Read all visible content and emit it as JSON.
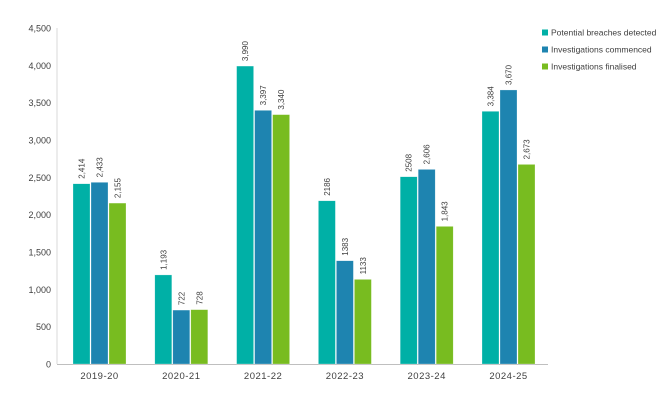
{
  "chart_data": {
    "type": "bar",
    "title": "",
    "xlabel": "",
    "ylabel": "",
    "ylim": [
      0,
      4500
    ],
    "yticks": [
      0,
      500,
      1000,
      1500,
      2000,
      2500,
      3000,
      3500,
      4000,
      4500
    ],
    "ytick_labels": [
      "0",
      "500",
      "1,000",
      "1,500",
      "2,000",
      "2,500",
      "3,000",
      "3,500",
      "4,000",
      "4,500"
    ],
    "grid": false,
    "legend_position": "top-right",
    "categories": [
      "2019-20",
      "2020-21",
      "2021-22",
      "2022-23",
      "2023-24",
      "2024-25"
    ],
    "series": [
      {
        "name": "Potential breaches detected",
        "color": "#00b0a6",
        "values": [
          2414,
          1193,
          3990,
          2186,
          2508,
          3384
        ],
        "labels": [
          "2,414",
          "1,193",
          "3,990",
          "2186",
          "2508",
          "3,384"
        ]
      },
      {
        "name": "Investigations commenced",
        "color": "#1e84b0",
        "values": [
          2433,
          722,
          3397,
          1383,
          2606,
          3670
        ],
        "labels": [
          "2,433",
          "722",
          "3,397",
          "1383",
          "2,606",
          "3,670"
        ]
      },
      {
        "name": "Investigations finalised",
        "color": "#78bc20",
        "values": [
          2155,
          728,
          3340,
          1133,
          1843,
          2673
        ],
        "labels": [
          "2,155",
          "728",
          "3,340",
          "1133",
          "1,843",
          "2,673"
        ]
      }
    ]
  }
}
